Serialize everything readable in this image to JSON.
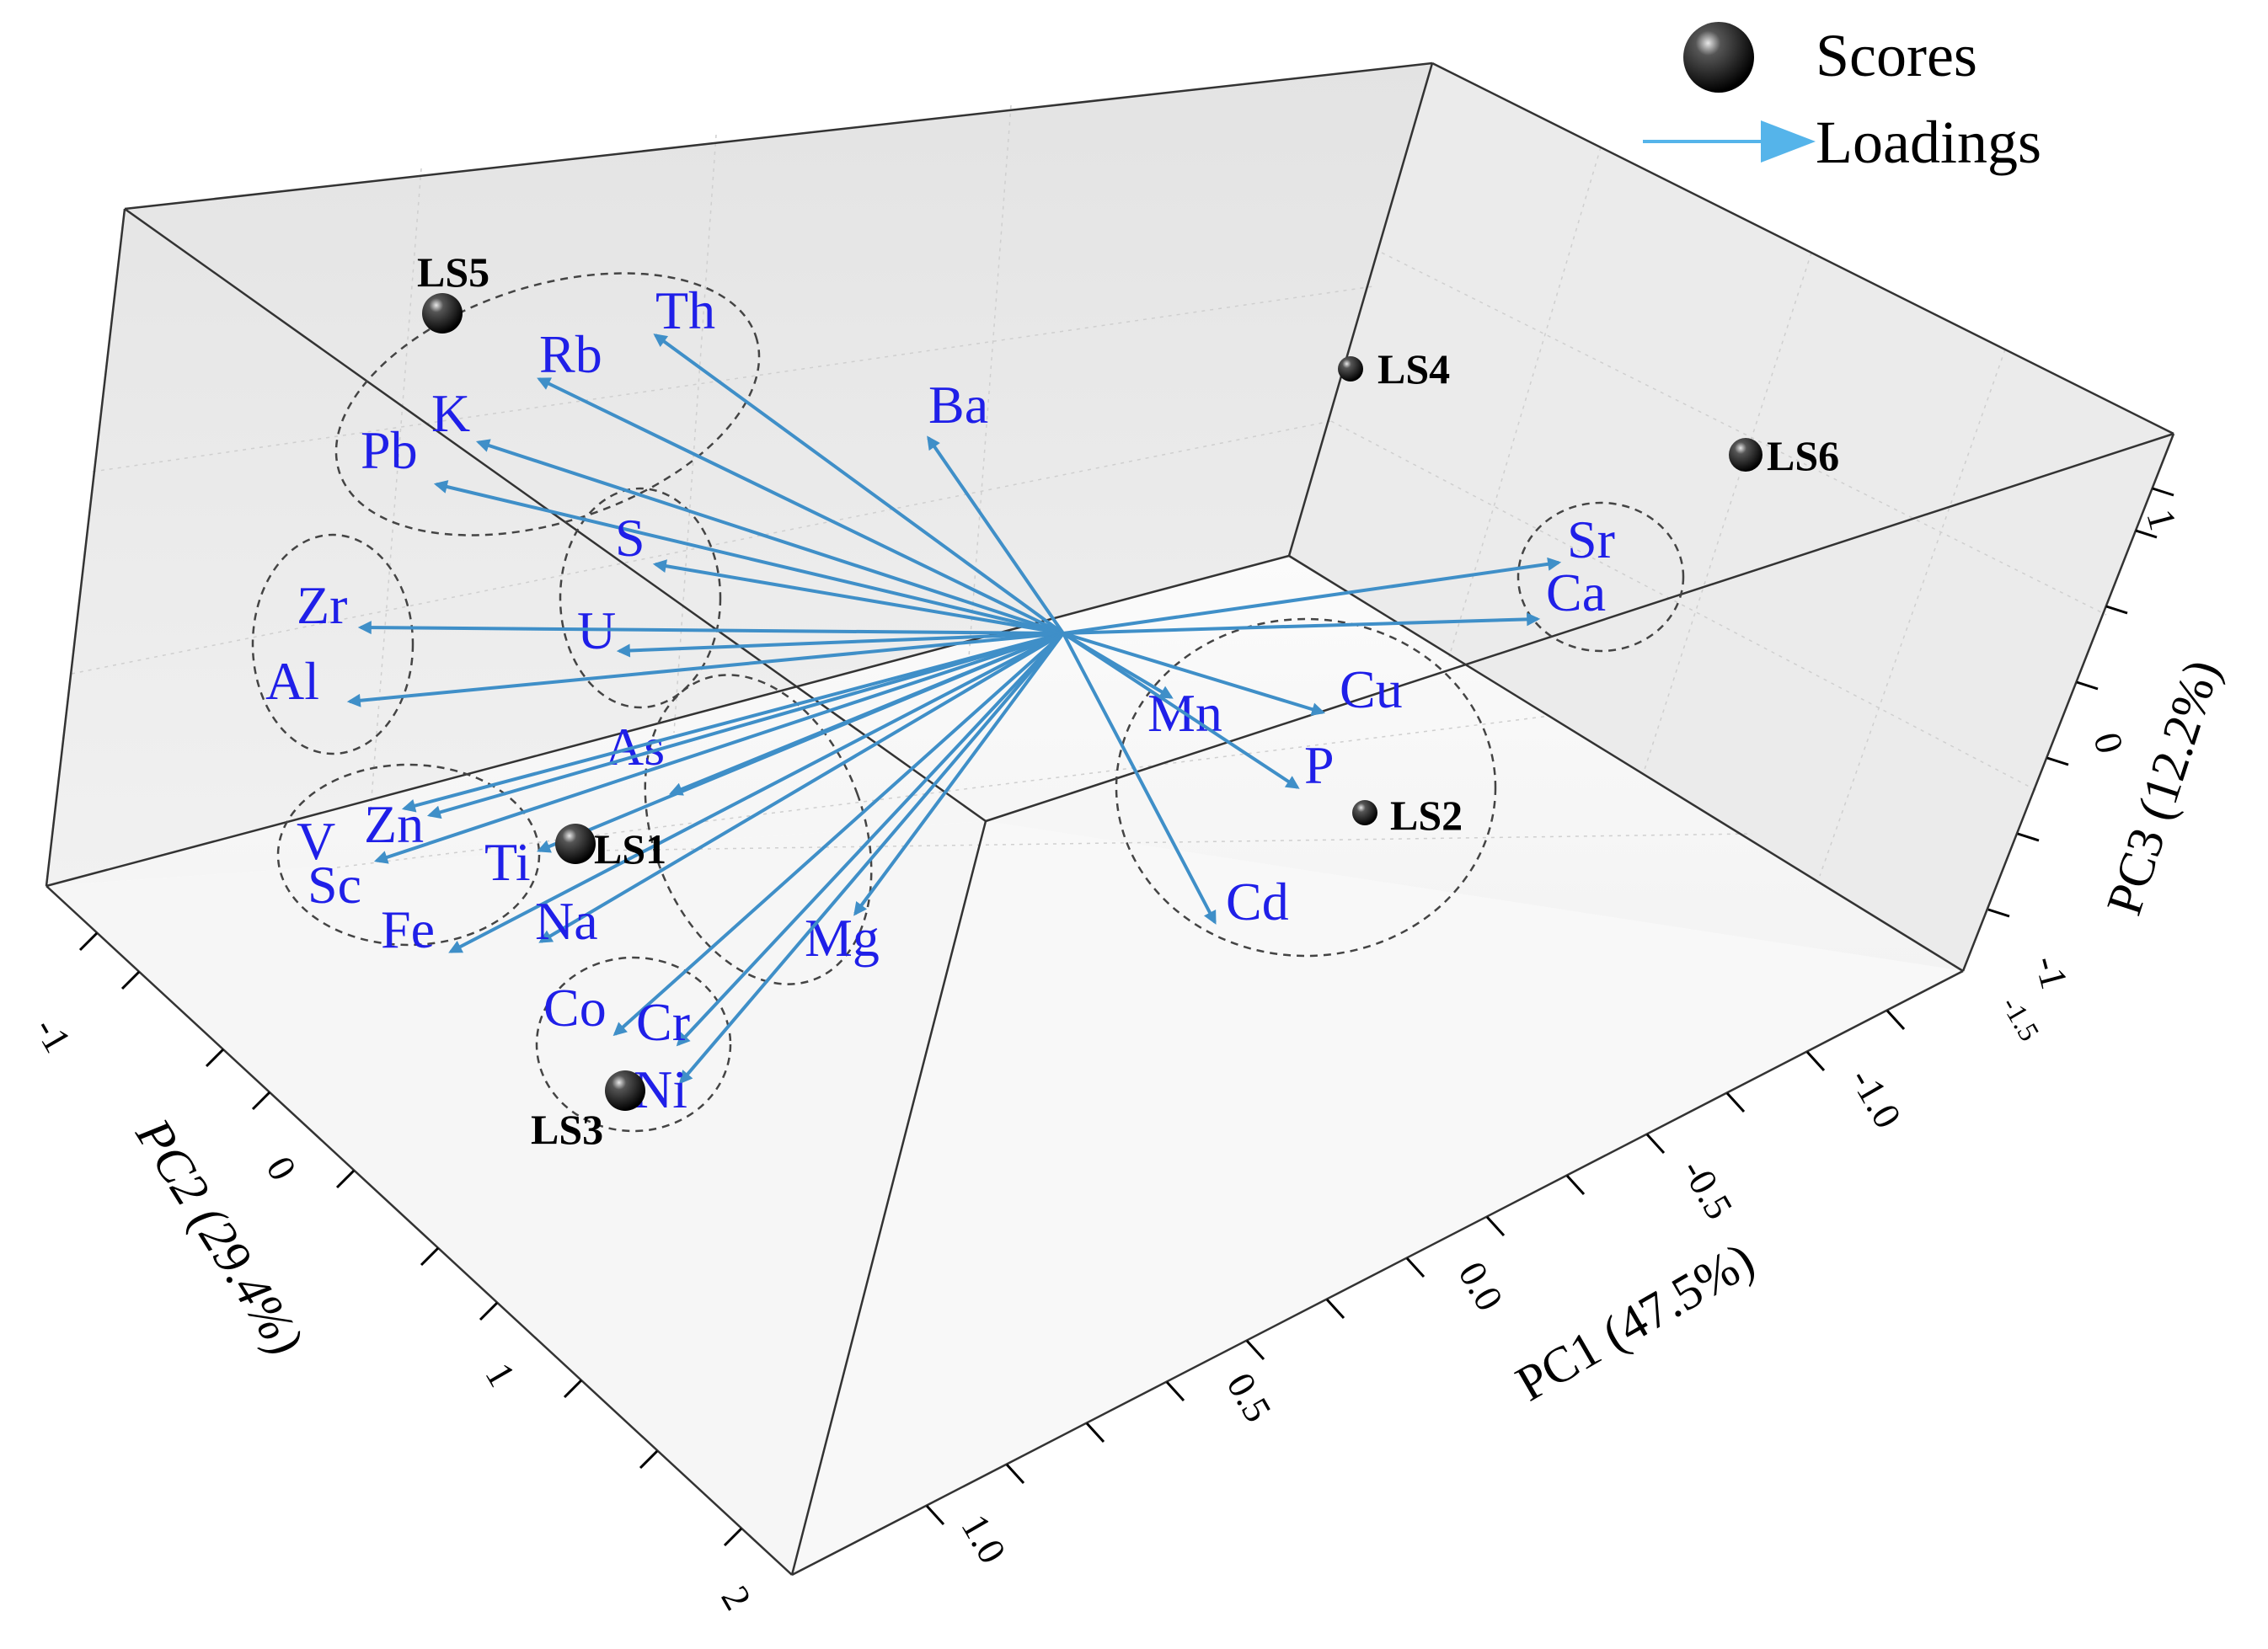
{
  "chart_data": {
    "type": "scatter3d-biplot",
    "title": "",
    "axes": {
      "x": {
        "label": "PC1 (47.5%)",
        "ticks": [
          "-1.5",
          "-1.0",
          "-0.5",
          "0.0",
          "0.5",
          "1.0"
        ]
      },
      "y": {
        "label": "PC2 (29.4%)",
        "ticks": [
          "-1",
          "0",
          "1",
          "2"
        ]
      },
      "z": {
        "label": "PC3 (12.2%)",
        "ticks": [
          "-1",
          "0",
          "1"
        ]
      }
    },
    "legend": [
      {
        "name": "Scores",
        "marker": "sphere",
        "color": "#000000"
      },
      {
        "name": "Loadings",
        "marker": "arrow",
        "color": "#55b4ea"
      }
    ],
    "scores": [
      {
        "name": "LS1",
        "size": "large"
      },
      {
        "name": "LS2",
        "size": "small"
      },
      {
        "name": "LS3",
        "size": "large"
      },
      {
        "name": "LS4",
        "size": "small"
      },
      {
        "name": "LS5",
        "size": "large"
      },
      {
        "name": "LS6",
        "size": "medium"
      }
    ],
    "loadings": [
      {
        "name": "Th",
        "group": 1
      },
      {
        "name": "Rb",
        "group": 1
      },
      {
        "name": "K",
        "group": 1
      },
      {
        "name": "Pb",
        "group": 1
      },
      {
        "name": "S",
        "group": 2
      },
      {
        "name": "U",
        "group": 2
      },
      {
        "name": "Zr",
        "group": 3
      },
      {
        "name": "Al",
        "group": 3
      },
      {
        "name": "Ba",
        "group": 0
      },
      {
        "name": "Sr",
        "group": 4
      },
      {
        "name": "Ca",
        "group": 4
      },
      {
        "name": "Cu",
        "group": 5
      },
      {
        "name": "Mn",
        "group": 5
      },
      {
        "name": "P",
        "group": 5
      },
      {
        "name": "Cd",
        "group": 5
      },
      {
        "name": "As",
        "group": 6
      },
      {
        "name": "Mg",
        "group": 6
      },
      {
        "name": "V",
        "group": 7
      },
      {
        "name": "Zn",
        "group": 7
      },
      {
        "name": "Sc",
        "group": 7
      },
      {
        "name": "Ti",
        "group": 7
      },
      {
        "name": "Fe",
        "group": 7
      },
      {
        "name": "Na",
        "group": 7
      },
      {
        "name": "Co",
        "group": 8
      },
      {
        "name": "Cr",
        "group": 8
      },
      {
        "name": "Ni",
        "group": 8
      }
    ],
    "colors": {
      "arrow": "#3f8fc8",
      "label": "#1f1fe8",
      "score": "#000000"
    }
  }
}
